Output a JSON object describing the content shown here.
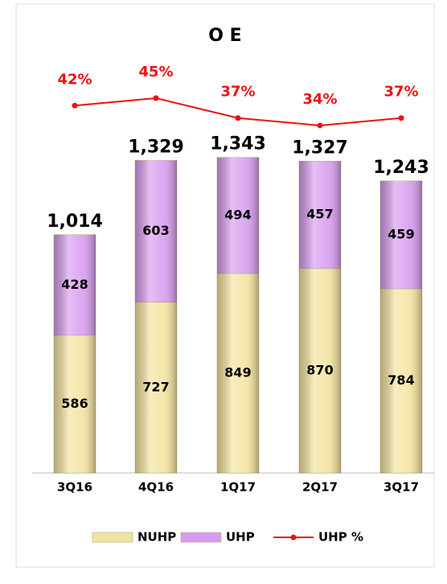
{
  "chart_data": {
    "type": "bar",
    "stacked": true,
    "title": "O E",
    "categories": [
      "3Q16",
      "4Q16",
      "1Q17",
      "2Q17",
      "3Q17"
    ],
    "series": [
      {
        "name": "NUHP",
        "color": "#f3e3a0",
        "values": [
          586,
          727,
          849,
          870,
          784
        ]
      },
      {
        "name": "UHP",
        "color": "#d89cef",
        "values": [
          428,
          603,
          494,
          457,
          459
        ]
      },
      {
        "name": "UHP %",
        "type": "line",
        "color": "#ee1111",
        "values": [
          42,
          45,
          37,
          34,
          37
        ],
        "value_labels": [
          "42%",
          "45%",
          "37%",
          "34%",
          "37%"
        ]
      }
    ],
    "totals": [
      1014,
      1329,
      1343,
      1327,
      1243
    ],
    "total_labels": [
      "1,014",
      "1,329",
      "1,343",
      "1,327",
      "1,243"
    ],
    "ylim": [
      0,
      1400
    ]
  }
}
